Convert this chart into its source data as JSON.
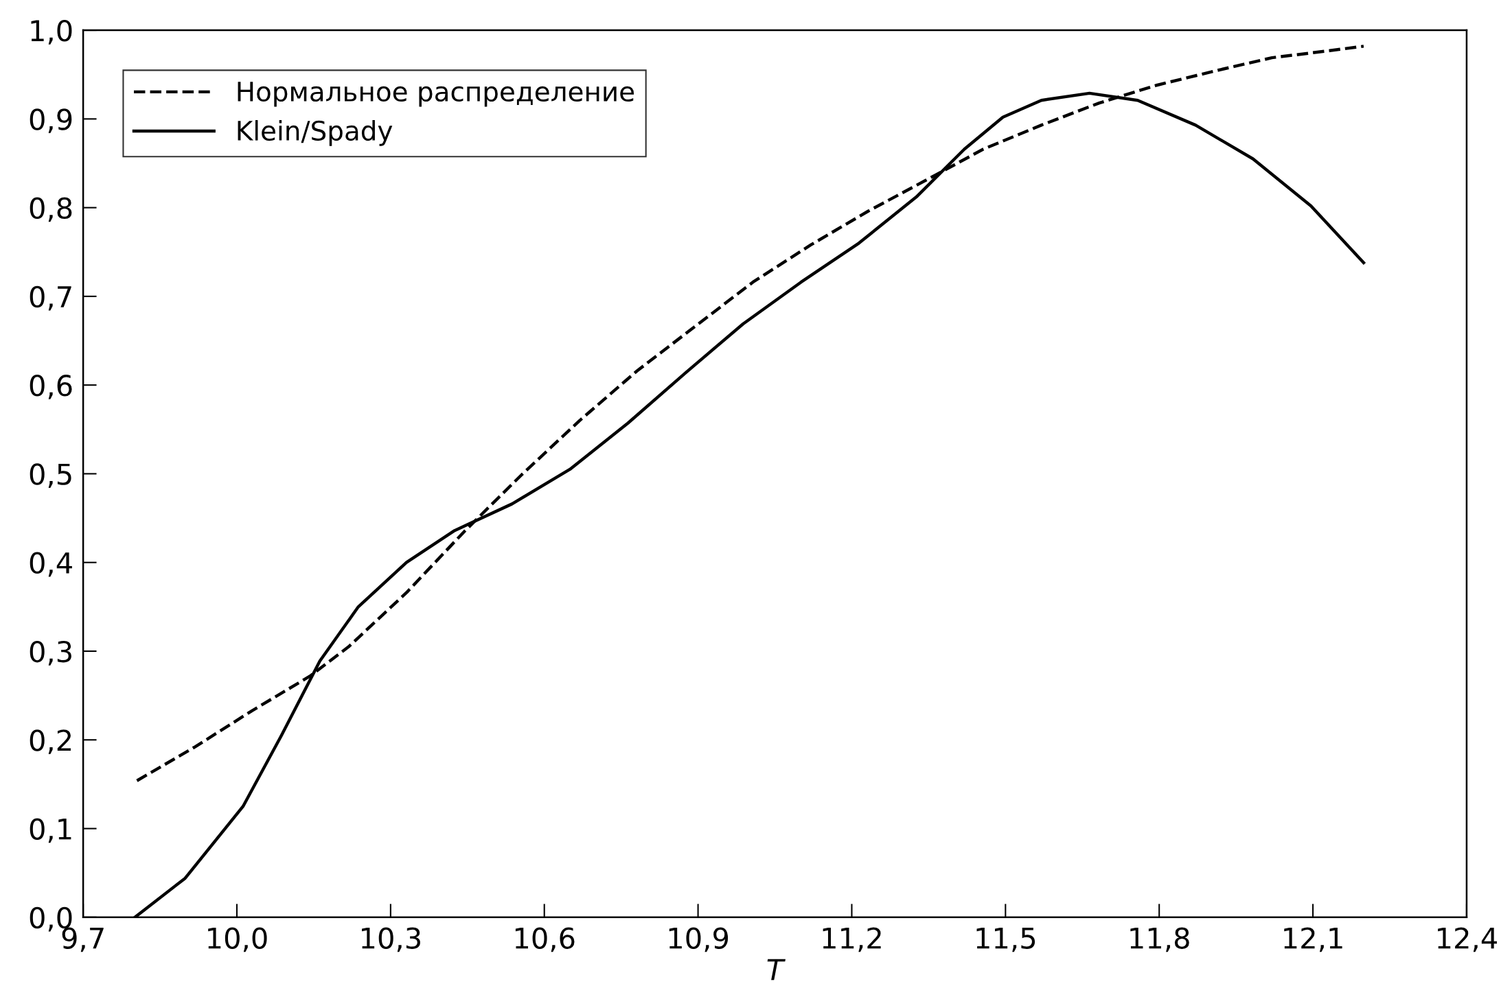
{
  "chart_data": {
    "type": "line",
    "xlabel": "T",
    "xlim": [
      9.7,
      12.4
    ],
    "ylim": [
      0.0,
      1.0
    ],
    "xticks": [
      {
        "value": 9.7,
        "label": "9,7"
      },
      {
        "value": 10.0,
        "label": "10,0"
      },
      {
        "value": 10.3,
        "label": "10,3"
      },
      {
        "value": 10.6,
        "label": "10,6"
      },
      {
        "value": 10.9,
        "label": "10,9"
      },
      {
        "value": 11.2,
        "label": "11,2"
      },
      {
        "value": 11.5,
        "label": "11,5"
      },
      {
        "value": 11.8,
        "label": "11,8"
      },
      {
        "value": 12.1,
        "label": "12,1"
      },
      {
        "value": 12.4,
        "label": "12,4"
      }
    ],
    "yticks": [
      {
        "value": 0.0,
        "label": "0,0"
      },
      {
        "value": 0.1,
        "label": "0,1"
      },
      {
        "value": 0.2,
        "label": "0,2"
      },
      {
        "value": 0.3,
        "label": "0,3"
      },
      {
        "value": 0.4,
        "label": "0,4"
      },
      {
        "value": 0.5,
        "label": "0,5"
      },
      {
        "value": 0.6,
        "label": "0,6"
      },
      {
        "value": 0.7,
        "label": "0,7"
      },
      {
        "value": 0.8,
        "label": "0,8"
      },
      {
        "value": 0.9,
        "label": "0,9"
      },
      {
        "value": 1.0,
        "label": "1,0"
      }
    ],
    "grid": false,
    "legend": "top left",
    "series": [
      {
        "name": "Нормальное распределение",
        "color": "#000000",
        "line_style": "dashed",
        "x": [
          9.805,
          9.918,
          10.03,
          10.143,
          10.218,
          10.331,
          10.444,
          10.556,
          10.669,
          10.781,
          10.894,
          11.007,
          11.12,
          11.232,
          11.345,
          11.457,
          11.57,
          11.683,
          11.795,
          11.908,
          12.02,
          12.133,
          12.199
        ],
        "values": [
          0.154,
          0.192,
          0.233,
          0.272,
          0.305,
          0.366,
          0.435,
          0.499,
          0.56,
          0.616,
          0.666,
          0.716,
          0.758,
          0.796,
          0.831,
          0.866,
          0.893,
          0.918,
          0.938,
          0.954,
          0.969,
          0.977,
          0.982
        ]
      },
      {
        "name": "Klein/Spady",
        "color": "#000000",
        "line_style": "solid",
        "x": [
          9.801,
          9.899,
          10.012,
          10.087,
          10.162,
          10.237,
          10.331,
          10.425,
          10.537,
          10.65,
          10.763,
          10.876,
          10.988,
          11.101,
          11.214,
          11.326,
          11.42,
          11.495,
          11.57,
          11.664,
          11.758,
          11.871,
          11.983,
          12.096,
          12.199
        ],
        "values": [
          0.0,
          0.044,
          0.125,
          0.205,
          0.289,
          0.35,
          0.4,
          0.436,
          0.466,
          0.505,
          0.557,
          0.614,
          0.669,
          0.716,
          0.76,
          0.812,
          0.866,
          0.902,
          0.921,
          0.929,
          0.921,
          0.893,
          0.855,
          0.802,
          0.738
        ]
      }
    ]
  }
}
